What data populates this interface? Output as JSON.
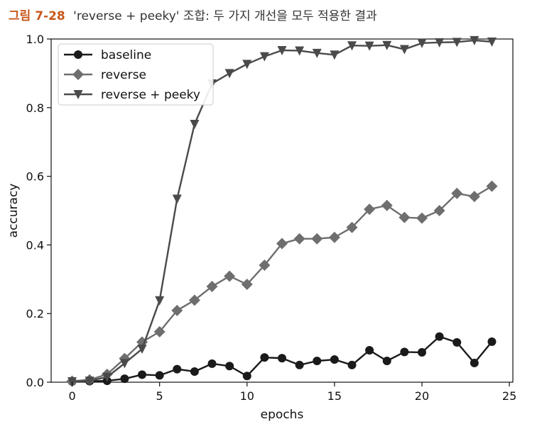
{
  "caption": {
    "number": "그림 7-28",
    "text": "'reverse + peeky' 조합: 두 가지 개선을 모두 적용한 결과"
  },
  "chart_data": {
    "type": "line",
    "xlabel": "epochs",
    "ylabel": "accuracy",
    "xlim": [
      -1.2,
      25.2
    ],
    "ylim": [
      0,
      1.0
    ],
    "xticks": [
      0,
      5,
      10,
      15,
      20,
      25
    ],
    "yticks": [
      0.0,
      0.2,
      0.4,
      0.6,
      0.8,
      1.0
    ],
    "xtick_labels": [
      "0",
      "5",
      "10",
      "15",
      "20",
      "25"
    ],
    "ytick_labels": [
      "0.0",
      "0.2",
      "0.4",
      "0.6",
      "0.8",
      "1.0"
    ],
    "legend_position": "top-left",
    "grid": false,
    "series": [
      {
        "name": "baseline",
        "marker": "circle",
        "color": "#1a1a1a",
        "x": [
          0,
          1,
          2,
          3,
          4,
          5,
          6,
          7,
          8,
          9,
          10,
          11,
          12,
          13,
          14,
          15,
          16,
          17,
          18,
          19,
          20,
          21,
          22,
          23,
          24
        ],
        "values": [
          0.002,
          0.003,
          0.004,
          0.01,
          0.022,
          0.02,
          0.038,
          0.031,
          0.054,
          0.047,
          0.018,
          0.072,
          0.07,
          0.05,
          0.062,
          0.066,
          0.05,
          0.093,
          0.062,
          0.088,
          0.087,
          0.133,
          0.116,
          0.056,
          0.118
        ]
      },
      {
        "name": "reverse",
        "marker": "diamond",
        "color": "#6e6e6e",
        "x": [
          0,
          1,
          2,
          3,
          4,
          5,
          6,
          7,
          8,
          9,
          10,
          11,
          12,
          13,
          14,
          15,
          16,
          17,
          18,
          19,
          20,
          21,
          22,
          23,
          24
        ],
        "values": [
          0.003,
          0.007,
          0.023,
          0.069,
          0.117,
          0.147,
          0.209,
          0.239,
          0.279,
          0.309,
          0.285,
          0.341,
          0.404,
          0.418,
          0.418,
          0.422,
          0.451,
          0.504,
          0.515,
          0.48,
          0.478,
          0.5,
          0.55,
          0.541,
          0.571
        ]
      },
      {
        "name": "reverse + peeky",
        "marker": "triangle-down",
        "color": "#4a4a4a",
        "x": [
          0,
          1,
          2,
          3,
          4,
          5,
          6,
          7,
          8,
          9,
          10,
          11,
          12,
          13,
          14,
          15,
          16,
          17,
          18,
          19,
          20,
          21,
          22,
          23,
          24
        ],
        "values": [
          0.002,
          0.004,
          0.015,
          0.055,
          0.097,
          0.238,
          0.534,
          0.752,
          0.87,
          0.9,
          0.927,
          0.949,
          0.967,
          0.966,
          0.959,
          0.954,
          0.981,
          0.98,
          0.982,
          0.97,
          0.988,
          0.99,
          0.991,
          0.996,
          0.992
        ]
      }
    ]
  }
}
